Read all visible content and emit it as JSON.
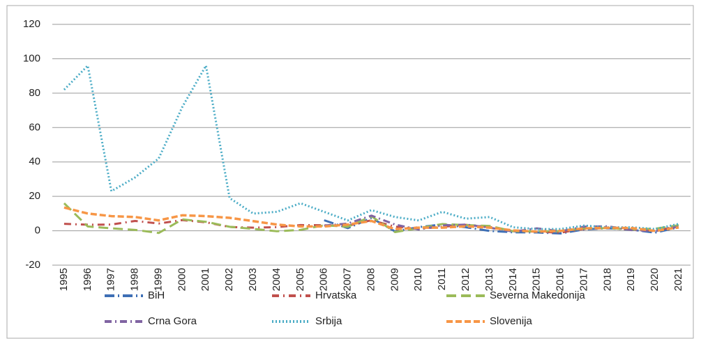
{
  "chart_data": {
    "type": "line",
    "categories": [
      "1995",
      "1996",
      "1997",
      "1998",
      "1999",
      "2000",
      "2001",
      "2002",
      "2003",
      "2004",
      "2005",
      "2006",
      "2007",
      "2008",
      "2009",
      "2010",
      "2011",
      "2012",
      "2013",
      "2014",
      "2015",
      "2016",
      "2017",
      "2018",
      "2019",
      "2020",
      "2021"
    ],
    "series": [
      {
        "name": "BiH",
        "color": "#3e6fb5",
        "values": [
          null,
          null,
          null,
          null,
          null,
          null,
          null,
          null,
          null,
          null,
          null,
          6.1,
          1.5,
          7.4,
          -0.4,
          2.1,
          3.7,
          2.0,
          -0.1,
          -0.9,
          -1.0,
          -1.6,
          0.8,
          1.4,
          0.6,
          -1.1,
          2.0
        ]
      },
      {
        "name": "Hrvatska",
        "color": "#c0504d",
        "values": [
          4.0,
          3.5,
          3.6,
          5.7,
          4.2,
          6.2,
          4.9,
          2.2,
          1.8,
          2.1,
          3.3,
          3.2,
          2.9,
          6.1,
          2.4,
          1.1,
          2.3,
          3.4,
          2.2,
          -0.2,
          -0.5,
          -1.1,
          1.1,
          1.5,
          0.8,
          0.1,
          2.6
        ]
      },
      {
        "name": "Severna Makedonija",
        "color": "#9bbb59",
        "values": [
          16.0,
          2.5,
          1.4,
          0.5,
          -1.3,
          6.6,
          5.2,
          2.3,
          1.1,
          -0.3,
          0.5,
          3.2,
          2.3,
          8.4,
          -0.8,
          1.5,
          3.9,
          3.3,
          2.8,
          -0.3,
          -0.3,
          -0.2,
          1.4,
          1.5,
          0.8,
          1.2,
          3.2
        ]
      },
      {
        "name": "Crna Gora",
        "color": "#8064a2",
        "values": [
          null,
          null,
          null,
          null,
          null,
          null,
          null,
          null,
          null,
          null,
          null,
          3.0,
          4.2,
          8.8,
          3.6,
          0.7,
          3.1,
          3.6,
          1.8,
          -0.5,
          1.4,
          -0.3,
          2.4,
          2.6,
          0.4,
          -0.3,
          2.4
        ]
      },
      {
        "name": "Srbija",
        "color": "#4bacc6",
        "values": [
          82,
          96,
          23,
          31,
          42,
          72,
          96,
          19,
          10,
          11,
          16,
          11,
          6,
          12,
          8,
          6,
          11,
          7,
          8,
          2,
          1,
          1,
          3,
          2,
          2,
          1,
          4
        ]
      },
      {
        "name": "Slovenija",
        "color": "#f79646",
        "values": [
          13.5,
          10,
          8.5,
          8,
          6,
          9,
          8.5,
          7.5,
          5.6,
          3.6,
          2.5,
          2.5,
          3.6,
          5.7,
          0.9,
          1.8,
          1.8,
          2.6,
          1.8,
          0.2,
          -0.5,
          -0.1,
          1.4,
          1.7,
          1.6,
          -0.1,
          1.9
        ]
      }
    ],
    "ylim": [
      -20,
      120
    ],
    "yticks": [
      -20,
      0,
      20,
      40,
      60,
      80,
      100,
      120
    ],
    "grid": true
  }
}
